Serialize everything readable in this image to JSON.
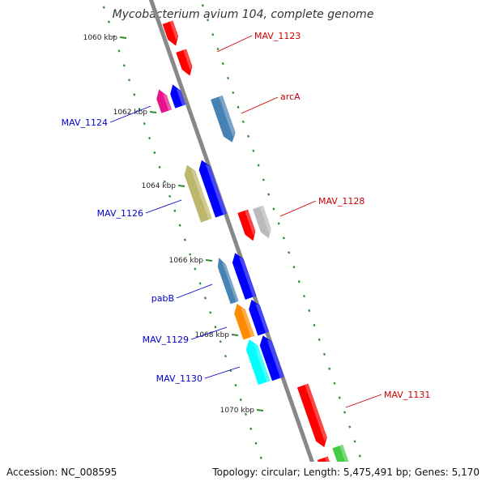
{
  "title": "Mycobacterium avium 104, complete genome",
  "footer": {
    "accession": "Accession: NC_008595",
    "summary": "Topology: circular; Length: 5,475,491 bp; Genes: 5,170"
  },
  "colors": {
    "forward_label": "#cc0000",
    "reverse_label": "#0000cc",
    "backbone": "#888888",
    "tick": "#2e8b2e"
  },
  "ticks": [
    {
      "label": "1060 kbp",
      "kbp": 1060
    },
    {
      "label": "1062 kbp",
      "kbp": 1062
    },
    {
      "label": "1064 kbp",
      "kbp": 1064
    },
    {
      "label": "1066 kbp",
      "kbp": 1066
    },
    {
      "label": "1068 kbp",
      "kbp": 1068
    },
    {
      "label": "1070 kbp",
      "kbp": 1070
    }
  ],
  "genes": [
    {
      "strand": "+",
      "color": "#ff0000",
      "label": "MAV_1123"
    },
    {
      "strand": "+",
      "color": "#ff0000",
      "label": ""
    },
    {
      "strand": "+",
      "color": "#4682b4",
      "label": "arcA"
    },
    {
      "strand": "+",
      "color": "#ff0000",
      "label": "MAV_1128"
    },
    {
      "strand": "+",
      "color": "#bbbbbb",
      "label": ""
    },
    {
      "strand": "+",
      "color": "#ff0000",
      "label": "MAV_1131"
    },
    {
      "strand": "+",
      "color": "#ff0000",
      "label": ""
    },
    {
      "strand": "+",
      "color": "#44cc44",
      "label": ""
    },
    {
      "strand": "-",
      "color": "#e8138c",
      "label": "MAV_1124"
    },
    {
      "strand": "-",
      "color": "#0000ff",
      "label": ""
    },
    {
      "strand": "-",
      "color": "#bdb76b",
      "label": "MAV_1126"
    },
    {
      "strand": "-",
      "color": "#0000ff",
      "label": ""
    },
    {
      "strand": "-",
      "color": "#4682b4",
      "label": "pabB"
    },
    {
      "strand": "-",
      "color": "#0000ff",
      "label": ""
    },
    {
      "strand": "-",
      "color": "#ff8c00",
      "label": "MAV_1129"
    },
    {
      "strand": "-",
      "color": "#0000ff",
      "label": ""
    },
    {
      "strand": "-",
      "color": "#00ffff",
      "label": "MAV_1130"
    },
    {
      "strand": "-",
      "color": "#0000ff",
      "label": ""
    }
  ]
}
